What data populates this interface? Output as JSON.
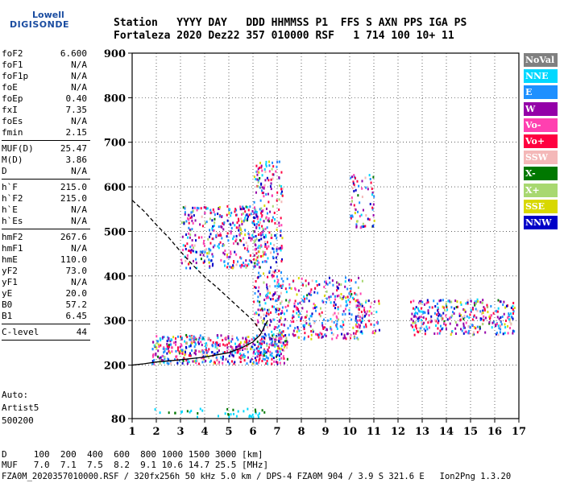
{
  "logo": {
    "line1": "Lowell",
    "line2": "DIGISONDE"
  },
  "header": {
    "labels": "Station   YYYY DAY   DDD HHMMSS P1  FFS S AXN PPS IGA PS",
    "values": "Fortaleza 2020 Dez22 357 010000 RSF   1 714 100 10+ 11"
  },
  "params": [
    {
      "k": "foF2",
      "v": "6.600"
    },
    {
      "k": "foF1",
      "v": "N/A"
    },
    {
      "k": "foF1p",
      "v": "N/A"
    },
    {
      "k": "foE",
      "v": "N/A"
    },
    {
      "k": "foEp",
      "v": "0.40"
    },
    {
      "k": "fxI",
      "v": "7.35"
    },
    {
      "k": "foEs",
      "v": "N/A"
    },
    {
      "k": "fmin",
      "v": "2.15"
    },
    {
      "k": "MUF(D)",
      "v": "25.47"
    },
    {
      "k": "M(D)",
      "v": "3.86"
    },
    {
      "k": "D",
      "v": "N/A"
    },
    {
      "k": "h`F",
      "v": "215.0"
    },
    {
      "k": "h`F2",
      "v": "215.0"
    },
    {
      "k": "h`E",
      "v": "N/A"
    },
    {
      "k": "h`Es",
      "v": "N/A"
    },
    {
      "k": "hmF2",
      "v": "267.6"
    },
    {
      "k": "hmF1",
      "v": "N/A"
    },
    {
      "k": "hmE",
      "v": "110.0"
    },
    {
      "k": "yF2",
      "v": "73.0"
    },
    {
      "k": "yF1",
      "v": "N/A"
    },
    {
      "k": "yE",
      "v": "20.0"
    },
    {
      "k": "B0",
      "v": "57.2"
    },
    {
      "k": "B1",
      "v": "6.45"
    },
    {
      "k": "C-level",
      "v": "44"
    }
  ],
  "auto": {
    "l1": "Auto:",
    "l2": "Artist5",
    "l3": "500200"
  },
  "footer": {
    "d_row": "D     100  200  400  600  800 1000 1500 3000 [km]",
    "muf_row": "MUF   7.0  7.1  7.5  8.2  9.1 10.6 14.7 25.5 [MHz]",
    "info": "FZA0M_2020357010000.RSF / 320fx256h 50 kHz 5.0 km / DPS-4 FZA0M 904 / 3.9 S 321.6 E   Ion2Png 1.3.20"
  },
  "legend": [
    {
      "label": "NoVal",
      "color": "#808080"
    },
    {
      "label": "NNE",
      "color": "#00d8ff"
    },
    {
      "label": "E",
      "color": "#1e90ff"
    },
    {
      "label": "W",
      "color": "#9400a8"
    },
    {
      "label": "Vo-",
      "color": "#ff40b0"
    },
    {
      "label": "Vo+",
      "color": "#ff0040"
    },
    {
      "label": "SSW",
      "color": "#f4b8b8"
    },
    {
      "label": "X-",
      "color": "#007800"
    },
    {
      "label": "X+",
      "color": "#a8d870"
    },
    {
      "label": "SSE",
      "color": "#d8d800"
    },
    {
      "label": "NNW",
      "color": "#0000c8"
    }
  ],
  "chart_data": {
    "type": "scatter",
    "xlabel": "",
    "ylabel": "",
    "xlim": [
      1,
      17
    ],
    "ylim": [
      80,
      900
    ],
    "xticks": [
      1,
      2,
      3,
      4,
      5,
      6,
      7,
      8,
      9,
      10,
      11,
      12,
      13,
      14,
      15,
      16,
      17
    ],
    "yticks": [
      80,
      200,
      300,
      400,
      500,
      600,
      700,
      800,
      900
    ],
    "grid": true,
    "traces": [
      {
        "name": "",
        "style": "solid",
        "color": "#000000",
        "x": [
          1.0,
          1.5,
          2.0,
          3.0,
          4.0,
          5.0,
          5.5,
          6.0,
          6.3,
          6.6
        ],
        "y": [
          200,
          203,
          207,
          212,
          218,
          228,
          238,
          252,
          268,
          300
        ]
      },
      {
        "name": "",
        "style": "dashed",
        "color": "#000000",
        "x": [
          1.0,
          1.5,
          2.0,
          2.5,
          3.0,
          3.5,
          4.0,
          4.5,
          5.0,
          5.5,
          6.0,
          6.4
        ],
        "y": [
          570,
          545,
          515,
          487,
          455,
          425,
          398,
          375,
          350,
          325,
          300,
          270
        ]
      }
    ],
    "echo_regions": [
      {
        "x": [
          1.8,
          7.4
        ],
        "y": [
          205,
          270
        ]
      },
      {
        "x": [
          3.0,
          6.5
        ],
        "y": [
          420,
          560
        ]
      },
      {
        "x": [
          6.0,
          7.2
        ],
        "y": [
          250,
          660
        ]
      },
      {
        "x": [
          7.0,
          10.5
        ],
        "y": [
          260,
          400
        ]
      },
      {
        "x": [
          10.2,
          11.2
        ],
        "y": [
          270,
          350
        ]
      },
      {
        "x": [
          12.5,
          16.8
        ],
        "y": [
          270,
          350
        ]
      },
      {
        "x": [
          10.0,
          11.0
        ],
        "y": [
          510,
          630
        ]
      },
      {
        "x": [
          1.8,
          6.5
        ],
        "y": [
          85,
          105
        ]
      }
    ]
  }
}
